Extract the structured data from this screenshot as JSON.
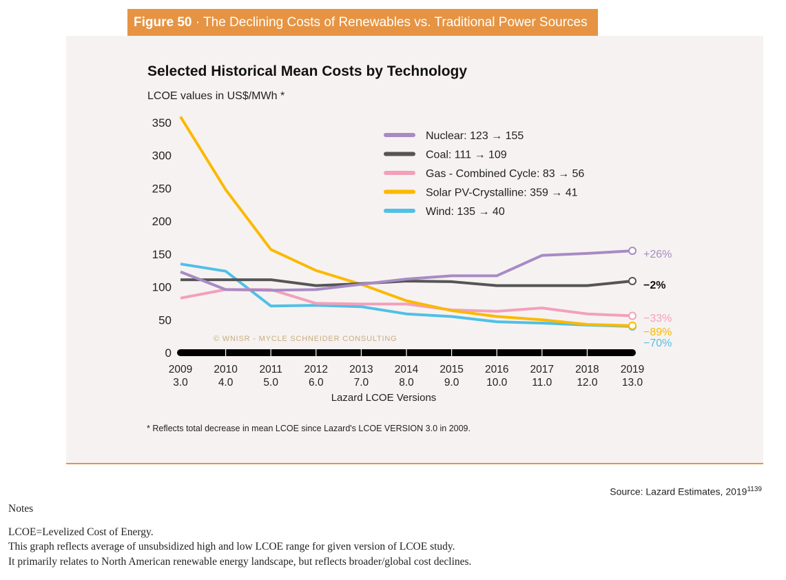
{
  "figure": {
    "number_label": "Figure 50",
    "separator": " · ",
    "title": "The Declining Costs of Renewables vs. Traditional Power Sources"
  },
  "footnote": "* Reflects total decrease in mean LCOE since Lazard's  LCOE VERSION 3.0 in 2009.",
  "source": {
    "text": "Source: Lazard Estimates, 2019",
    "ref": "1139"
  },
  "notes": {
    "heading": "Notes",
    "lines": [
      "LCOE=Levelized Cost of Energy.",
      "This graph reflects average of unsubsidized high and low LCOE range for given version of LCOE study.",
      "It primarily relates to North American renewable energy landscape, but reflects broader/global cost declines."
    ]
  },
  "colors": {
    "header_bg": "#e69443",
    "panel_bg": "#f6f2f1",
    "nuclear": "#a78bc4",
    "coal": "#555555",
    "gas": "#f3a0ba",
    "solar": "#fbb900",
    "wind": "#4fc0e6",
    "watermark": "#c8ad7f"
  },
  "chart_data": {
    "type": "line",
    "title": "Selected Historical Mean Costs by Technology",
    "subtitle": "LCOE values in US$/MWh *",
    "xlabel": "Lazard LCOE Versions",
    "ylabel": "LCOE values in US$/MWh",
    "x": [
      "2009",
      "2010",
      "2011",
      "2012",
      "2013",
      "2014",
      "2015",
      "2016",
      "2017",
      "2018",
      "2019"
    ],
    "x_secondary": [
      "3.0",
      "4.0",
      "5.0",
      "6.0",
      "7.0",
      "8.0",
      "9.0",
      "10.0",
      "11.0",
      "12.0",
      "13.0"
    ],
    "ylim": [
      0,
      350
    ],
    "yticks": [
      0,
      50,
      100,
      150,
      200,
      250,
      300,
      350
    ],
    "grid": false,
    "legend_position": "top-right",
    "watermark": "© WNISR - Mycle Schneider Consulting",
    "series": [
      {
        "name": "Nuclear",
        "key": "nuclear",
        "legend": "Nuclear: 123 → 155",
        "end_label": "+26%",
        "values": [
          123,
          96,
          95,
          96,
          104,
          112,
          117,
          117,
          148,
          151,
          155
        ]
      },
      {
        "name": "Coal",
        "key": "coal",
        "legend": "Coal: 111 → 109",
        "end_label": "−2%",
        "values": [
          111,
          111,
          111,
          102,
          105,
          109,
          108,
          102,
          102,
          102,
          109
        ]
      },
      {
        "name": "Gas - Combined Cycle",
        "key": "gas",
        "legend": "Gas - Combined Cycle: 83 → 56",
        "end_label": "−33%",
        "values": [
          83,
          96,
          96,
          75,
          74,
          74,
          65,
          63,
          68,
          59,
          56
        ]
      },
      {
        "name": "Solar PV-Crystalline",
        "key": "solar",
        "legend": "Solar PV-Crystalline: 359 → 41",
        "end_label": "−89%",
        "values": [
          359,
          248,
          157,
          125,
          104,
          79,
          64,
          55,
          50,
          43,
          41
        ]
      },
      {
        "name": "Wind",
        "key": "wind",
        "legend": "Wind: 135 → 40",
        "end_label": "−70%",
        "values": [
          135,
          124,
          71,
          72,
          70,
          59,
          55,
          47,
          45,
          42,
          40
        ]
      }
    ]
  }
}
